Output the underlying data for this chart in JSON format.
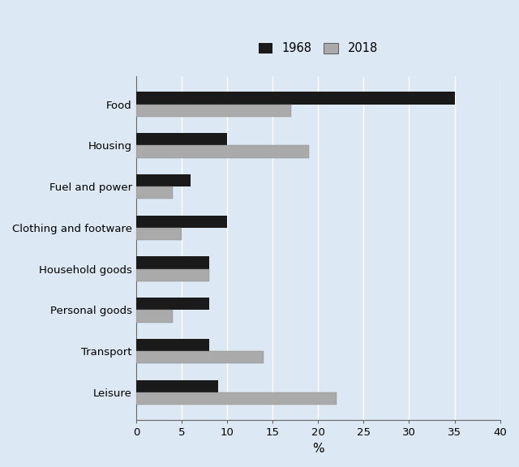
{
  "categories": [
    "Food",
    "Housing",
    "Fuel and power",
    "Clothing and footware",
    "Household goods",
    "Personal goods",
    "Transport",
    "Leisure"
  ],
  "values_1968": [
    35,
    10,
    6,
    10,
    8,
    8,
    8,
    9
  ],
  "values_2018": [
    17,
    19,
    4,
    5,
    8,
    4,
    14,
    22
  ],
  "color_1968": "#1a1a1a",
  "color_2018": "#aaaaaa",
  "xlabel": "%",
  "xlim": [
    0,
    40
  ],
  "xticks": [
    0,
    5,
    10,
    15,
    20,
    25,
    30,
    35,
    40
  ],
  "legend_labels": [
    "1968",
    "2018"
  ],
  "background_color": "#dce8f4",
  "bar_height": 0.3,
  "grid_color": "#ffffff",
  "figsize": [
    6.4,
    5.76
  ],
  "dpi": 100
}
